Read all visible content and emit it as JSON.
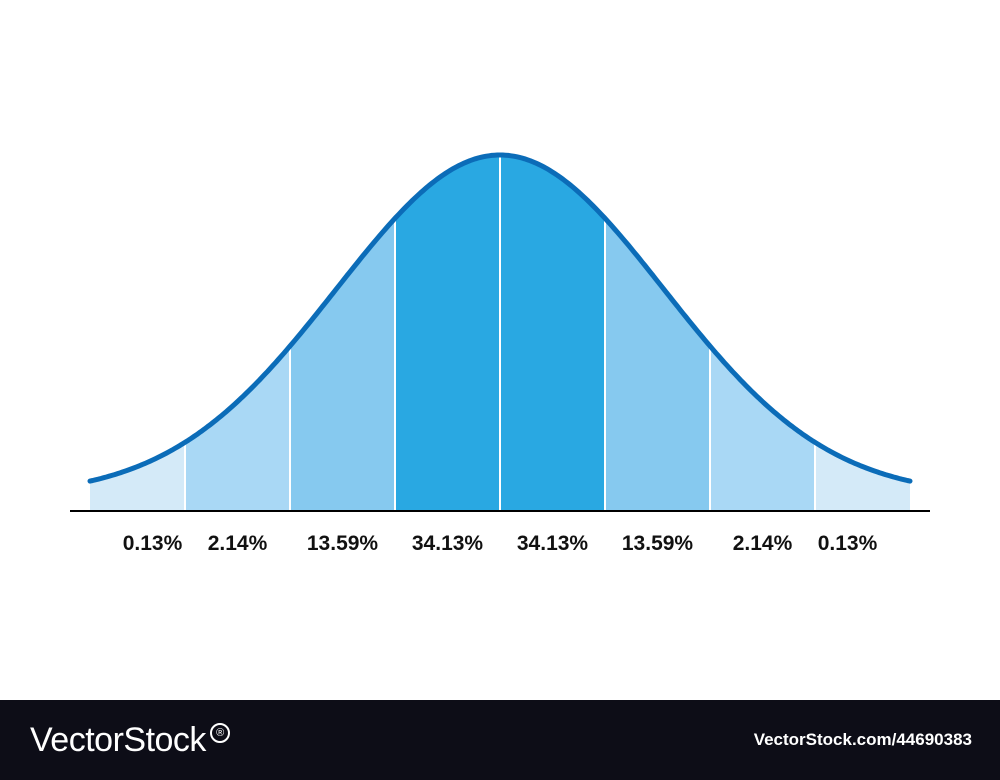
{
  "chart_data": {
    "type": "area",
    "title": "",
    "xlabel": "",
    "ylabel": "",
    "distribution": "normal",
    "x_range_sd": [
      -4,
      4
    ],
    "segments": [
      {
        "from_sd": -4,
        "to_sd": -3,
        "percent": 0.13,
        "label": "0.13%"
      },
      {
        "from_sd": -3,
        "to_sd": -2,
        "percent": 2.14,
        "label": "2.14%"
      },
      {
        "from_sd": -2,
        "to_sd": -1,
        "percent": 13.59,
        "label": "13.59%"
      },
      {
        "from_sd": -1,
        "to_sd": 0,
        "percent": 34.13,
        "label": "34.13%"
      },
      {
        "from_sd": 0,
        "to_sd": 1,
        "percent": 34.13,
        "label": "34.13%"
      },
      {
        "from_sd": 1,
        "to_sd": 2,
        "percent": 13.59,
        "label": "13.59%"
      },
      {
        "from_sd": 2,
        "to_sd": 3,
        "percent": 2.14,
        "label": "2.14%"
      },
      {
        "from_sd": 3,
        "to_sd": 4,
        "percent": 0.13,
        "label": "0.13%"
      }
    ],
    "colors": {
      "outer": "#d4eaf8",
      "third": "#a9d8f5",
      "second": "#86c9ef",
      "center": "#29a8e2",
      "curve": "#0b6cb8",
      "divider": "#ffffff",
      "baseline": "#000000"
    },
    "grid": false,
    "legend": "none"
  },
  "footer": {
    "brand": "VectorStock",
    "trademark": "®",
    "image_id": "VectorStock.com/44690383"
  }
}
